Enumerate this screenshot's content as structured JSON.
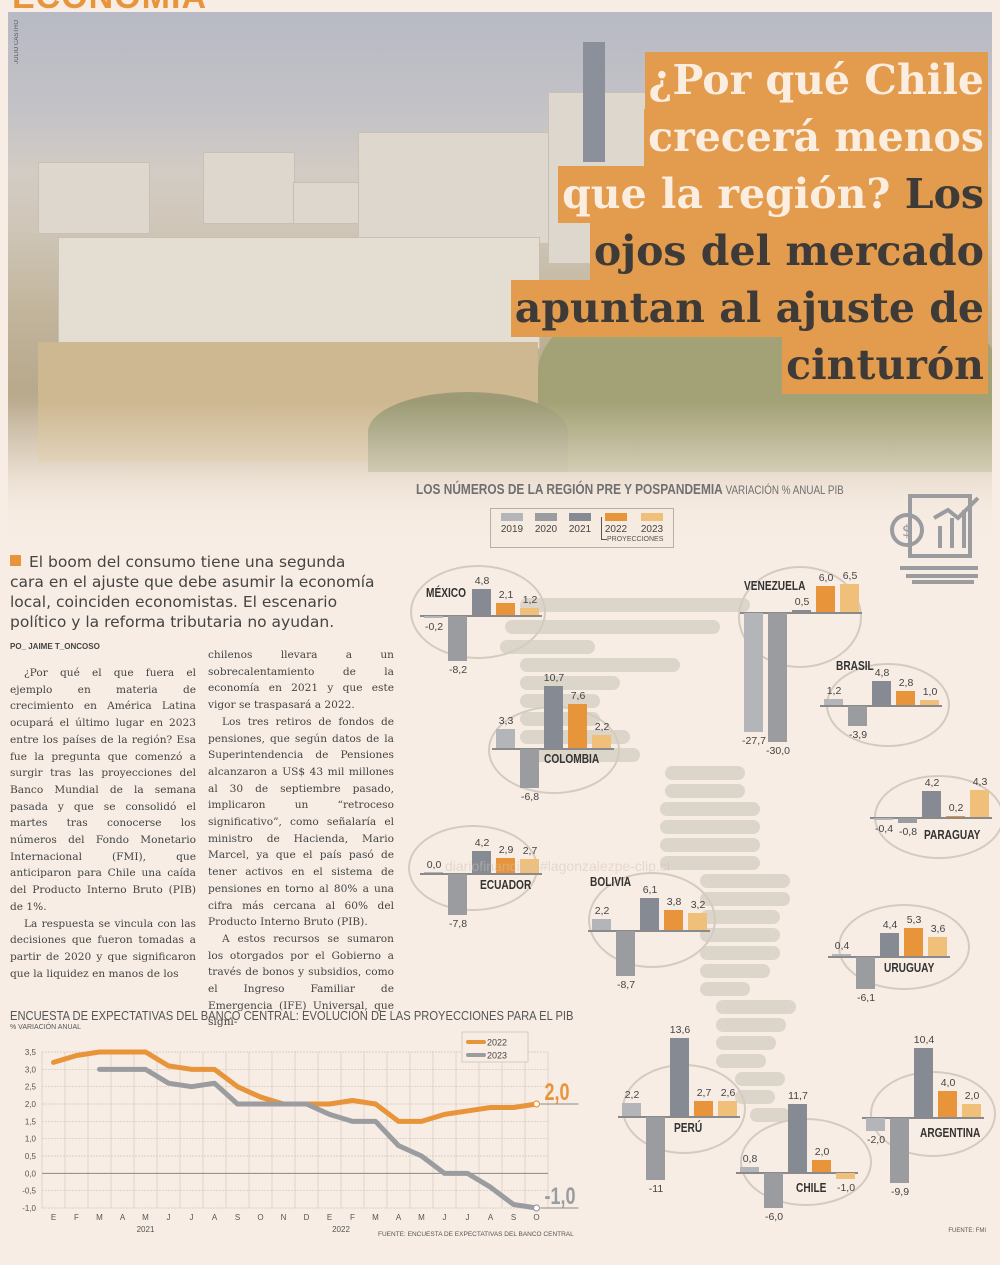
{
  "section": "ECONOMÍA",
  "photo_credit": "JULIO CASTRO",
  "headline": {
    "lines": [
      {
        "text": "¿Por qué Chile",
        "tone": "light"
      },
      {
        "text": "crecerá menos",
        "tone": "light"
      },
      {
        "text_light": "que la región?",
        "text_dark": " Los"
      },
      {
        "text": "ojos del mercado",
        "tone": "dark"
      },
      {
        "text": "apuntan al ajuste de",
        "tone": "dark"
      },
      {
        "text": "cinturón",
        "tone": "dark"
      }
    ]
  },
  "lead": "El boom del consumo tiene una segunda cara en el ajuste que debe asumir la economía local, coinciden economistas. El escenario político y la reforma tributaria no ayudan.",
  "byline": "PO_ JAIME T_ONCOSO",
  "body": {
    "col1": [
      "¿Por qué el que fuera el ejemplo en materia de crecimiento en América Latina ocupará el último lugar en 2023 entre los países de la región? Esa fue la pregunta que comenzó a surgir tras las proyecciones del Banco Mundial de la semana pasada y que se consolidó el martes tras conocerse los números del Fondo Monetario Internacional (FMI), que anticiparon para Chile una caída del Producto Interno Bruto (PIB) de 1%.",
      "La respuesta se vincula con las decisiones que fueron tomadas a partir de 2020 y que significaron que la liquidez en manos de los"
    ],
    "col2": [
      "chilenos llevara a un sobrecalentamiento de la economía en 2021 y que este vigor se traspasará a 2022.",
      "Los tres retiros de fondos de pensiones, que según datos de la Superintendencia de Pensiones alcanzaron a US$ 43 mil millones al 30 de septiembre pasado, implicaron un “retroceso significativo”, como señalaría el ministro de Hacienda, Mario Marcel, ya que el país pasó de tener activos en el sistema de pensiones en torno al 80% a una cifra más cercana al 60% del Producto Interno Bruto (PIB).",
      "A estos recursos se sumaron los otorgados por el Gobierno a través de bonos y subsidios, como el Ingreso Familiar de Emergencia (IFE) Universal, que signi-"
    ]
  },
  "watermark": "diariofinanciero#lagonzalezpe-clip.cl",
  "chart_data": [
    {
      "type": "bar",
      "title": "LOS NÚMEROS DE LA REGIÓN PRE Y POSPANDEMIA",
      "subtitle": "VARIACIÓN % ANUAL PIB",
      "categories": [
        "2019",
        "2020",
        "2021",
        "2022",
        "2023"
      ],
      "legend_note": "PROYECCIONES",
      "colors": {
        "2019": "#b4b5b8",
        "2020": "#9a9ca0",
        "2021": "#868a92",
        "2022": "#e8943a",
        "2023": "#f0c07a"
      },
      "series": [
        {
          "name": "MÉXICO",
          "values": [
            -0.2,
            -8.2,
            4.8,
            2.1,
            1.2
          ],
          "labels": [
            "-0,2",
            "-8,2",
            "4,8",
            "2,1",
            "1,2"
          ]
        },
        {
          "name": "COLOMBIA",
          "values": [
            3.3,
            -6.8,
            10.7,
            7.6,
            2.2
          ],
          "labels": [
            "3,3",
            "-6,8",
            "10,7",
            "7,6",
            "2,2"
          ]
        },
        {
          "name": "VENEZUELA",
          "values": [
            -27.7,
            -30.0,
            0.5,
            6.0,
            6.5
          ],
          "labels": [
            "-27,7",
            "-30,0",
            "0,5",
            "6,0",
            "6,5"
          ]
        },
        {
          "name": "BRASIL",
          "values": [
            1.2,
            -3.9,
            4.8,
            2.8,
            1.0
          ],
          "labels": [
            "1,2",
            "-3,9",
            "4,8",
            "2,8",
            "1,0"
          ]
        },
        {
          "name": "ECUADOR",
          "values": [
            0.0,
            -7.8,
            4.2,
            2.9,
            2.7
          ],
          "labels": [
            "0,0",
            "-7,8",
            "4,2",
            "2,9",
            "2,7"
          ]
        },
        {
          "name": "PARAGUAY",
          "values": [
            -0.4,
            -0.8,
            4.2,
            0.2,
            4.3
          ],
          "labels": [
            "-0,4",
            "-0,8",
            "4,2",
            "0,2",
            "4,3"
          ]
        },
        {
          "name": "BOLIVIA",
          "values": [
            2.2,
            -8.7,
            6.1,
            3.8,
            3.2
          ],
          "labels": [
            "2,2",
            "-8,7",
            "6,1",
            "3,8",
            "3,2"
          ]
        },
        {
          "name": "URUGUAY",
          "values": [
            0.4,
            -6.1,
            4.4,
            5.3,
            3.6
          ],
          "labels": [
            "0,4",
            "-6,1",
            "4,4",
            "5,3",
            "3,6"
          ]
        },
        {
          "name": "PERÚ",
          "values": [
            2.2,
            -11,
            13.6,
            2.7,
            2.6
          ],
          "labels": [
            "2,2",
            "-11",
            "13,6",
            "2,7",
            "2,6"
          ]
        },
        {
          "name": "CHILE",
          "values": [
            0.8,
            -6.0,
            11.7,
            2.0,
            -1.0
          ],
          "labels": [
            "0,8",
            "-6,0",
            "11,7",
            "2,0",
            "-1,0"
          ]
        },
        {
          "name": "ARGENTINA",
          "values": [
            -2.0,
            -9.9,
            10.4,
            4.0,
            2.0
          ],
          "labels": [
            "-2,0",
            "-9,9",
            "10,4",
            "4,0",
            "2,0"
          ]
        }
      ],
      "source": "FUENTE: FMI"
    },
    {
      "type": "line",
      "title": "ENCUESTA DE EXPECTATIVAS DEL BANCO CENTRAL: EVOLUCIÓN DE LAS PROYECCIONES PARA EL PIB",
      "ylabel": "% VARIACIÓN ANUAL",
      "x": [
        "E",
        "F",
        "M",
        "A",
        "M",
        "J",
        "J",
        "A",
        "S",
        "O",
        "N",
        "D",
        "E",
        "F",
        "M",
        "A",
        "M",
        "J",
        "J",
        "A",
        "S",
        "O"
      ],
      "year_labels": [
        {
          "label": "2021",
          "index": 4
        },
        {
          "label": "2022",
          "index": 12.5
        }
      ],
      "ylim": [
        -1.0,
        3.5
      ],
      "yticks": [
        "3,5",
        "3,0",
        "2,5",
        "2,0",
        "1,5",
        "1,0",
        "0,5",
        "0,0",
        "-0,5",
        "-1,0"
      ],
      "ytick_values": [
        3.5,
        3.0,
        2.5,
        2.0,
        1.5,
        1.0,
        0.5,
        0.0,
        -0.5,
        -1.0
      ],
      "grid": true,
      "legend": "top-right",
      "series": [
        {
          "name": "2022",
          "color": "#e8943a",
          "values": [
            3.2,
            3.4,
            3.5,
            3.5,
            3.5,
            3.1,
            3.0,
            3.0,
            2.5,
            2.2,
            2.0,
            2.0,
            2.0,
            2.1,
            2.0,
            1.5,
            1.5,
            1.7,
            1.8,
            1.9,
            1.9,
            2.0
          ],
          "end_label": "2,0"
        },
        {
          "name": "2023",
          "color": "#9a9ca0",
          "values": [
            null,
            null,
            3.0,
            3.0,
            3.0,
            2.6,
            2.5,
            2.6,
            2.0,
            2.0,
            2.0,
            2.0,
            1.7,
            1.5,
            1.5,
            0.8,
            0.5,
            0.0,
            0.0,
            -0.4,
            -0.9,
            -1.0
          ],
          "end_label": "-1,0"
        }
      ],
      "source": "FUENTE: ENCUESTA DE EXPECTATIVAS DEL BANCO CENTRAL"
    }
  ]
}
